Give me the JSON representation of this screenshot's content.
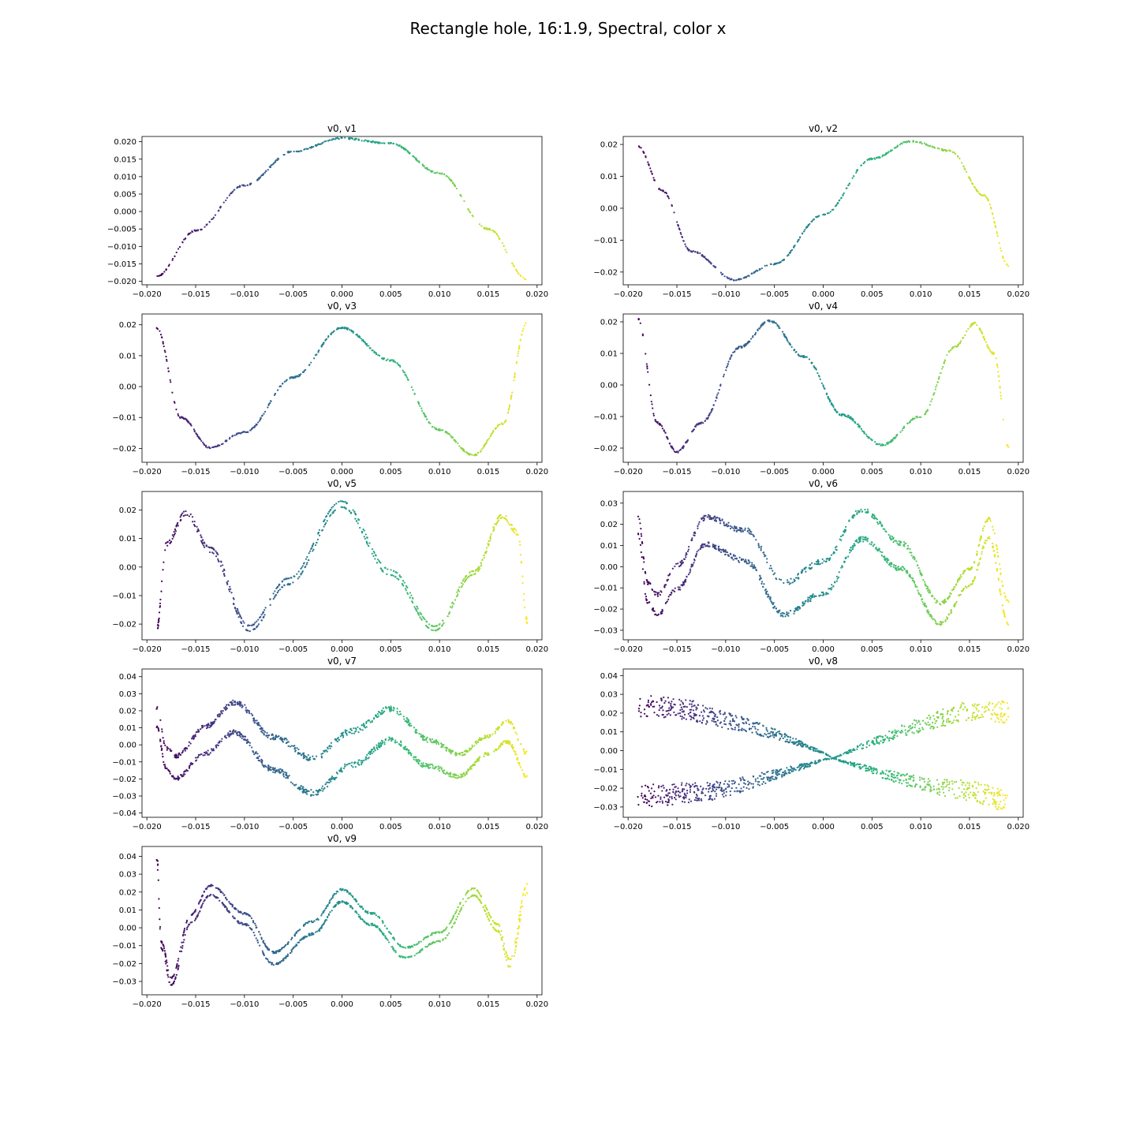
{
  "figure": {
    "title": "Rectangle hole, 16:1.9, Spectral, color x"
  },
  "chart_data": [
    {
      "type": "scatter",
      "title": "v0, v1",
      "xlim": [
        -0.0205,
        0.0205
      ],
      "ylim": [
        -0.021,
        0.0215
      ],
      "xticks": [
        "−0.020",
        "−0.015",
        "−0.010",
        "−0.005",
        "0.000",
        "0.005",
        "0.010",
        "0.015",
        "0.020"
      ],
      "yticks": [
        {
          "v": 0.02,
          "label": "0.020"
        },
        {
          "v": 0.015,
          "label": "0.015"
        },
        {
          "v": 0.01,
          "label": "0.010"
        },
        {
          "v": 0.005,
          "label": "0.005"
        },
        {
          "v": 0,
          "label": "0.000"
        },
        {
          "v": -0.005,
          "label": "−0.005"
        },
        {
          "v": -0.01,
          "label": "−0.010"
        },
        {
          "v": -0.015,
          "label": "−0.015"
        },
        {
          "v": -0.02,
          "label": "−0.020"
        }
      ],
      "curve": [
        [
          -0.019,
          -0.0185
        ],
        [
          -0.015,
          -0.0055
        ],
        [
          -0.01,
          0.0075
        ],
        [
          -0.005,
          0.0172
        ],
        [
          0.0,
          0.021
        ],
        [
          0.005,
          0.0195
        ],
        [
          0.01,
          0.011
        ],
        [
          0.015,
          -0.005
        ],
        [
          0.019,
          -0.0195
        ]
      ],
      "spread": 0.0004,
      "n": 400
    },
    {
      "type": "scatter",
      "title": "v0, v2",
      "xlim": [
        -0.0205,
        0.0205
      ],
      "ylim": [
        -0.024,
        0.0225
      ],
      "xticks": [
        "−0.020",
        "−0.015",
        "−0.010",
        "−0.005",
        "0.000",
        "0.005",
        "0.010",
        "0.015",
        "0.020"
      ],
      "yticks": [
        {
          "v": 0.02,
          "label": "0.02"
        },
        {
          "v": 0.01,
          "label": "0.01"
        },
        {
          "v": 0,
          "label": "0.00"
        },
        {
          "v": -0.01,
          "label": "−0.01"
        },
        {
          "v": -0.02,
          "label": "−0.02"
        }
      ],
      "curve": [
        [
          -0.019,
          0.0195
        ],
        [
          -0.0165,
          0.0055
        ],
        [
          -0.0135,
          -0.0135
        ],
        [
          -0.009,
          -0.0225
        ],
        [
          -0.005,
          -0.0175
        ],
        [
          0.0,
          -0.002
        ],
        [
          0.005,
          0.0155
        ],
        [
          0.009,
          0.021
        ],
        [
          0.013,
          0.018
        ],
        [
          0.0165,
          0.004
        ],
        [
          0.019,
          -0.018
        ]
      ],
      "spread": 0.0004,
      "n": 450
    },
    {
      "type": "scatter",
      "title": "v0, v3",
      "xlim": [
        -0.0205,
        0.0205
      ],
      "ylim": [
        -0.0245,
        0.0235
      ],
      "xticks": [
        "−0.020",
        "−0.015",
        "−0.010",
        "−0.005",
        "0.000",
        "0.005",
        "0.010",
        "0.015",
        "0.020"
      ],
      "yticks": [
        {
          "v": 0.02,
          "label": "0.02"
        },
        {
          "v": 0.01,
          "label": "0.01"
        },
        {
          "v": 0,
          "label": "0.00"
        },
        {
          "v": -0.01,
          "label": "−0.01"
        },
        {
          "v": -0.02,
          "label": "−0.02"
        }
      ],
      "curve": [
        [
          -0.019,
          0.019
        ],
        [
          -0.0165,
          -0.01
        ],
        [
          -0.0135,
          -0.0198
        ],
        [
          -0.01,
          -0.0148
        ],
        [
          -0.005,
          0.003
        ],
        [
          0.0,
          0.019
        ],
        [
          0.005,
          0.0085
        ],
        [
          0.01,
          -0.014
        ],
        [
          0.0135,
          -0.0222
        ],
        [
          0.0165,
          -0.012
        ],
        [
          0.019,
          0.021
        ]
      ],
      "spread": 0.0005,
      "n": 500
    },
    {
      "type": "scatter",
      "title": "v0, v4",
      "xlim": [
        -0.0205,
        0.0205
      ],
      "ylim": [
        -0.0245,
        0.0225
      ],
      "xticks": [
        "−0.020",
        "−0.015",
        "−0.010",
        "−0.005",
        "0.000",
        "0.005",
        "0.010",
        "0.015",
        "0.020"
      ],
      "yticks": [
        {
          "v": 0.02,
          "label": "0.02"
        },
        {
          "v": 0.01,
          "label": "0.01"
        },
        {
          "v": 0,
          "label": "0.00"
        },
        {
          "v": -0.01,
          "label": "−0.01"
        },
        {
          "v": -0.02,
          "label": "−0.02"
        }
      ],
      "curve": [
        [
          -0.019,
          0.021
        ],
        [
          -0.017,
          -0.012
        ],
        [
          -0.015,
          -0.0212
        ],
        [
          -0.0125,
          -0.012
        ],
        [
          -0.0085,
          0.012
        ],
        [
          -0.0055,
          0.0203
        ],
        [
          -0.002,
          0.009
        ],
        [
          0.002,
          -0.0095
        ],
        [
          0.006,
          -0.019
        ],
        [
          0.01,
          -0.01
        ],
        [
          0.0135,
          0.012
        ],
        [
          0.0155,
          0.0195
        ],
        [
          0.0175,
          0.01
        ],
        [
          0.019,
          -0.0195
        ]
      ],
      "spread": 0.0006,
      "n": 550
    },
    {
      "type": "scatter",
      "title": "v0, v5",
      "xlim": [
        -0.0205,
        0.0205
      ],
      "ylim": [
        -0.0255,
        0.0265
      ],
      "xticks": [
        "−0.020",
        "−0.015",
        "−0.010",
        "−0.005",
        "0.000",
        "0.005",
        "0.010",
        "0.015",
        "0.020"
      ],
      "yticks": [
        {
          "v": 0.02,
          "label": "0.02"
        },
        {
          "v": 0.01,
          "label": "0.01"
        },
        {
          "v": 0,
          "label": "0.00"
        },
        {
          "v": -0.01,
          "label": "−0.01"
        },
        {
          "v": -0.02,
          "label": "−0.02"
        }
      ],
      "curve": [
        [
          -0.019,
          -0.022
        ],
        [
          -0.018,
          0.008
        ],
        [
          -0.016,
          0.019
        ],
        [
          -0.0135,
          0.006
        ],
        [
          -0.0095,
          -0.0215
        ],
        [
          -0.0055,
          -0.005
        ],
        [
          0.0,
          0.022
        ],
        [
          0.005,
          -0.002
        ],
        [
          0.0095,
          -0.0215
        ],
        [
          0.0135,
          -0.002
        ],
        [
          0.0165,
          0.018
        ],
        [
          0.018,
          0.012
        ],
        [
          0.019,
          -0.019
        ]
      ],
      "spread": 0.0012,
      "n": 700
    },
    {
      "type": "scatter",
      "title": "v0, v6",
      "xlim": [
        -0.0205,
        0.0205
      ],
      "ylim": [
        -0.0345,
        0.0355
      ],
      "xticks": [
        "−0.020",
        "−0.015",
        "−0.010",
        "−0.005",
        "0.000",
        "0.005",
        "0.010",
        "0.015",
        "0.020"
      ],
      "yticks": [
        {
          "v": 0.03,
          "label": "0.03"
        },
        {
          "v": 0.02,
          "label": "0.02"
        },
        {
          "v": 0.01,
          "label": "0.01"
        },
        {
          "v": 0,
          "label": "0.00"
        },
        {
          "v": -0.01,
          "label": "−0.01"
        },
        {
          "v": -0.02,
          "label": "−0.02"
        },
        {
          "v": -0.03,
          "label": "−0.03"
        }
      ],
      "curve": [
        [
          -0.019,
          0.02
        ],
        [
          -0.018,
          -0.012
        ],
        [
          -0.017,
          -0.018
        ],
        [
          -0.015,
          -0.005
        ],
        [
          -0.012,
          0.017
        ],
        [
          -0.008,
          0.01
        ],
        [
          -0.004,
          -0.015
        ],
        [
          0.0,
          -0.005
        ],
        [
          0.004,
          0.02
        ],
        [
          0.008,
          0.005
        ],
        [
          0.012,
          -0.022
        ],
        [
          0.015,
          -0.005
        ],
        [
          0.017,
          0.018
        ],
        [
          0.019,
          -0.022
        ]
      ],
      "spread": 0.009,
      "n": 1200
    },
    {
      "type": "scatter",
      "title": "v0, v7",
      "xlim": [
        -0.0205,
        0.0205
      ],
      "ylim": [
        -0.0425,
        0.0445
      ],
      "xticks": [
        "−0.020",
        "−0.015",
        "−0.010",
        "−0.005",
        "0.000",
        "0.005",
        "0.010",
        "0.015",
        "0.020"
      ],
      "yticks": [
        {
          "v": 0.04,
          "label": "0.04"
        },
        {
          "v": 0.03,
          "label": "0.03"
        },
        {
          "v": 0.02,
          "label": "0.02"
        },
        {
          "v": 0.01,
          "label": "0.01"
        },
        {
          "v": 0,
          "label": "0.00"
        },
        {
          "v": -0.01,
          "label": "−0.01"
        },
        {
          "v": -0.02,
          "label": "−0.02"
        },
        {
          "v": -0.03,
          "label": "−0.03"
        },
        {
          "v": -0.04,
          "label": "−0.04"
        }
      ],
      "curve": [
        [
          -0.019,
          0.016
        ],
        [
          -0.018,
          -0.008
        ],
        [
          -0.017,
          -0.013
        ],
        [
          -0.014,
          0.003
        ],
        [
          -0.011,
          0.016
        ],
        [
          -0.007,
          -0.005
        ],
        [
          -0.003,
          -0.018
        ],
        [
          0.001,
          -0.002
        ],
        [
          0.005,
          0.012
        ],
        [
          0.009,
          -0.005
        ],
        [
          0.012,
          -0.012
        ],
        [
          0.015,
          0.0
        ],
        [
          0.017,
          0.008
        ],
        [
          0.019,
          -0.012
        ]
      ],
      "spread": 0.012,
      "n": 1300
    },
    {
      "type": "scatter",
      "title": "v0, v8",
      "xlim": [
        -0.0205,
        0.0205
      ],
      "ylim": [
        -0.0355,
        0.0435
      ],
      "xticks": [
        "−0.020",
        "−0.015",
        "−0.010",
        "−0.005",
        "0.000",
        "0.005",
        "0.010",
        "0.015",
        "0.020"
      ],
      "yticks": [
        {
          "v": 0.04,
          "label": "0.04"
        },
        {
          "v": 0.03,
          "label": "0.03"
        },
        {
          "v": 0.02,
          "label": "0.02"
        },
        {
          "v": 0.01,
          "label": "0.01"
        },
        {
          "v": 0,
          "label": "0.00"
        },
        {
          "v": -0.01,
          "label": "−0.01"
        },
        {
          "v": -0.02,
          "label": "−0.02"
        },
        {
          "v": -0.03,
          "label": "−0.03"
        }
      ],
      "curve": [
        [
          -0.019,
          0.0
        ],
        [
          -0.015,
          0.0
        ],
        [
          -0.01,
          -0.002
        ],
        [
          -0.005,
          -0.002
        ],
        [
          0.0,
          -0.003
        ],
        [
          0.001,
          -0.004
        ],
        [
          0.005,
          -0.003
        ],
        [
          0.01,
          -0.002
        ],
        [
          0.015,
          0.0
        ],
        [
          0.019,
          -0.003
        ]
      ],
      "spread": 0.03,
      "n": 1500
    },
    {
      "type": "scatter",
      "title": "v0, v9",
      "xlim": [
        -0.0205,
        0.0205
      ],
      "ylim": [
        -0.0375,
        0.0455
      ],
      "xticks": [
        "−0.020",
        "−0.015",
        "−0.010",
        "−0.005",
        "0.000",
        "0.005",
        "0.010",
        "0.015",
        "0.020"
      ],
      "yticks": [
        {
          "v": 0.04,
          "label": "0.04"
        },
        {
          "v": 0.03,
          "label": "0.03"
        },
        {
          "v": 0.02,
          "label": "0.02"
        },
        {
          "v": 0.01,
          "label": "0.01"
        },
        {
          "v": 0,
          "label": "0.00"
        },
        {
          "v": -0.01,
          "label": "−0.01"
        },
        {
          "v": -0.02,
          "label": "−0.02"
        },
        {
          "v": -0.03,
          "label": "−0.03"
        }
      ],
      "curve": [
        [
          -0.019,
          0.04
        ],
        [
          -0.0185,
          -0.01
        ],
        [
          -0.0175,
          -0.03
        ],
        [
          -0.0155,
          0.005
        ],
        [
          -0.0135,
          0.021
        ],
        [
          -0.01,
          0.005
        ],
        [
          -0.007,
          -0.017
        ],
        [
          -0.003,
          0.0
        ],
        [
          0.0,
          0.018
        ],
        [
          0.003,
          0.005
        ],
        [
          0.0065,
          -0.014
        ],
        [
          0.01,
          -0.005
        ],
        [
          0.0135,
          0.02
        ],
        [
          0.016,
          0.0
        ],
        [
          0.0172,
          -0.02
        ],
        [
          0.019,
          0.022
        ]
      ],
      "spread": 0.004,
      "n": 1100
    }
  ]
}
